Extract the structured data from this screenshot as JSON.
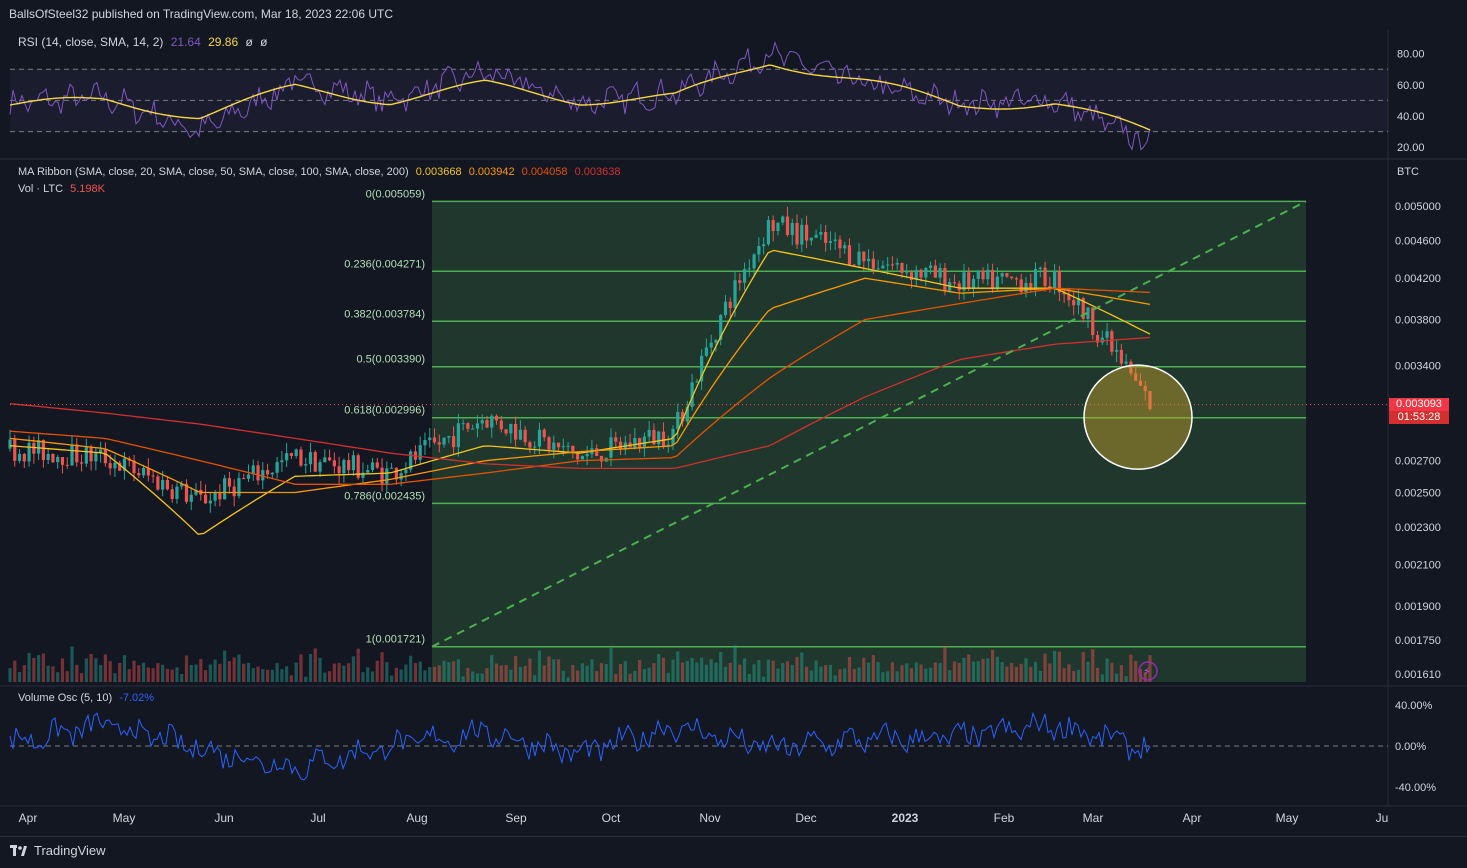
{
  "header": {
    "publisher": "BallsOfSteel32 published on TradingView.com, Mar 18, 2023 22:06 UTC"
  },
  "rsi": {
    "label": "RSI (14, close, SMA, 14, 2)",
    "value1": "21.64",
    "value2": "29.86",
    "value3": "ø",
    "value4": "ø",
    "ticks": [
      "80.00",
      "60.00",
      "40.00",
      "20.00"
    ]
  },
  "main": {
    "ma_label": "MA Ribbon (SMA, close, 20, SMA, close, 50, SMA, close, 100, SMA, close, 200)",
    "ma_values": [
      "0.003668",
      "0.003942",
      "0.004058",
      "0.003638"
    ],
    "vol_label": "Vol · LTC",
    "vol_value": "5.198K",
    "currency": "BTC",
    "price_ticks": [
      "0.005000",
      "0.004600",
      "0.004200",
      "0.003800",
      "0.003400",
      "0.002700",
      "0.002500",
      "0.002300",
      "0.002100",
      "0.001900",
      "0.001750",
      "0.001610"
    ],
    "last_price": "0.003093",
    "countdown": "01:53:28",
    "fib_levels": [
      {
        "label": "0(0.005059)",
        "value": 0.005059
      },
      {
        "label": "0.236(0.004271)",
        "value": 0.004271
      },
      {
        "label": "0.382(0.003784)",
        "value": 0.003784
      },
      {
        "label": "0.5(0.003390)",
        "value": 0.00339
      },
      {
        "label": "0.618(0.002996)",
        "value": 0.002996
      },
      {
        "label": "0.786(0.002435)",
        "value": 0.002435
      },
      {
        "label": "1(0.001721)",
        "value": 0.001721
      }
    ]
  },
  "volosc": {
    "label": "Volume Osc (5, 10)",
    "value": "-7.02%",
    "ticks": [
      "40.00%",
      "0.00%",
      "-40.00%"
    ]
  },
  "time_axis": [
    "Apr",
    "May",
    "Jun",
    "Jul",
    "Aug",
    "Sep",
    "Oct",
    "Nov",
    "Dec",
    "2023",
    "Feb",
    "Mar",
    "Apr",
    "May",
    "Ju"
  ],
  "footer": {
    "brand": "TradingView"
  },
  "colors": {
    "bg": "#131722",
    "up": "#26a69a",
    "down": "#ef5350",
    "fib": "#4caf50",
    "ma20": "#f5c518",
    "ma50": "#ff9800",
    "ma100": "#e65100",
    "ma200": "#d32f2f",
    "rsi": "#7e57c2",
    "rsi_ma": "#f5d742",
    "osc": "#2962ff"
  },
  "chart_data": [
    {
      "type": "line",
      "title": "RSI (14, close, SMA, 14, 2)",
      "x": [
        "Apr",
        "May",
        "Jun",
        "Jul",
        "Aug",
        "Sep",
        "Oct",
        "Nov",
        "Dec",
        "2023",
        "Feb",
        "Mar",
        "Mar 18"
      ],
      "series": [
        {
          "name": "RSI",
          "values": [
            48,
            52,
            30,
            62,
            50,
            68,
            48,
            55,
            80,
            60,
            48,
            50,
            22
          ]
        },
        {
          "name": "RSI MA",
          "values": [
            47,
            50,
            40,
            58,
            50,
            60,
            50,
            52,
            75,
            62,
            47,
            48,
            30
          ]
        }
      ],
      "ylim": [
        15,
        90
      ],
      "bands": [
        70,
        50,
        30
      ]
    },
    {
      "type": "line",
      "title": "",
      "ylabel": "BTC",
      "x": [
        "Apr",
        "May",
        "Jun",
        "Jul",
        "Aug",
        "Sep",
        "Oct",
        "Nov",
        "Dec",
        "2023",
        "Feb",
        "Mar",
        "Mar 18"
      ],
      "series": [
        {
          "name": "Price",
          "values": [
            0.00278,
            0.00272,
            0.00245,
            0.00272,
            0.00262,
            0.003,
            0.00272,
            0.0029,
            0.0048,
            0.0044,
            0.00415,
            0.0042,
            0.003093
          ]
        },
        {
          "name": "SMA 20",
          "values": [
            0.0028,
            0.00275,
            0.00225,
            0.0026,
            0.00262,
            0.0028,
            0.00275,
            0.00285,
            0.0045,
            0.0043,
            0.0041,
            0.0041,
            0.003668
          ]
        },
        {
          "name": "SMA 50",
          "values": [
            0.00285,
            0.00278,
            0.0025,
            0.0025,
            0.00258,
            0.0027,
            0.00276,
            0.0028,
            0.0039,
            0.0042,
            0.00405,
            0.0041,
            0.003942
          ]
        },
        {
          "name": "SMA 100",
          "values": [
            0.0029,
            0.00285,
            0.0027,
            0.00255,
            0.00255,
            0.00262,
            0.0027,
            0.00272,
            0.0033,
            0.0038,
            0.00395,
            0.0041,
            0.004058
          ]
        },
        {
          "name": "SMA 200",
          "values": [
            0.0031,
            0.00303,
            0.00295,
            0.00285,
            0.00275,
            0.00268,
            0.00265,
            0.00265,
            0.0028,
            0.00315,
            0.00345,
            0.00358,
            0.003638
          ]
        }
      ],
      "ylim": [
        0.00158,
        0.0052
      ],
      "scale": "log"
    },
    {
      "type": "line",
      "title": "Volume Osc (5, 10)",
      "x": [
        "Apr",
        "May",
        "Jun",
        "Jul",
        "Aug",
        "Sep",
        "Oct",
        "Nov",
        "Dec",
        "2023",
        "Feb",
        "Mar",
        "Mar 18"
      ],
      "series": [
        {
          "name": "Volume Osc",
          "values": [
            5,
            38,
            -5,
            -38,
            0,
            25,
            -15,
            35,
            -5,
            12,
            15,
            38,
            -7.02
          ]
        }
      ],
      "ylim": [
        -45,
        45
      ]
    }
  ]
}
